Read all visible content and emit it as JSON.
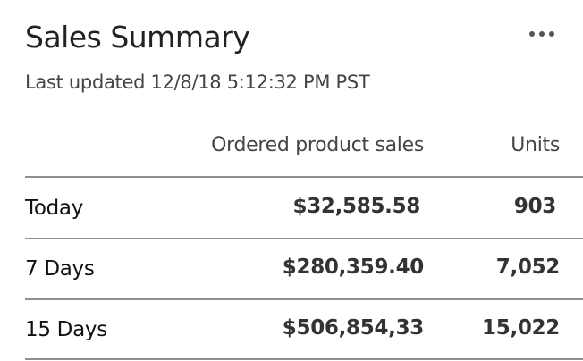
{
  "header": {
    "title": "Sales Summary",
    "last_updated": "Last updated 12/8/18 5:12:32 PM PST",
    "more_icon": "more-horizontal-icon"
  },
  "table": {
    "columns": [
      "",
      "Ordered product sales",
      "Units"
    ],
    "rows": [
      {
        "period": "Today",
        "sales": "$32,585.58",
        "units": "903"
      },
      {
        "period": "7 Days",
        "sales": "$280,359.40",
        "units": "7,052"
      },
      {
        "period": "15 Days",
        "sales": "$506,854,33",
        "units": "15,022"
      }
    ]
  }
}
